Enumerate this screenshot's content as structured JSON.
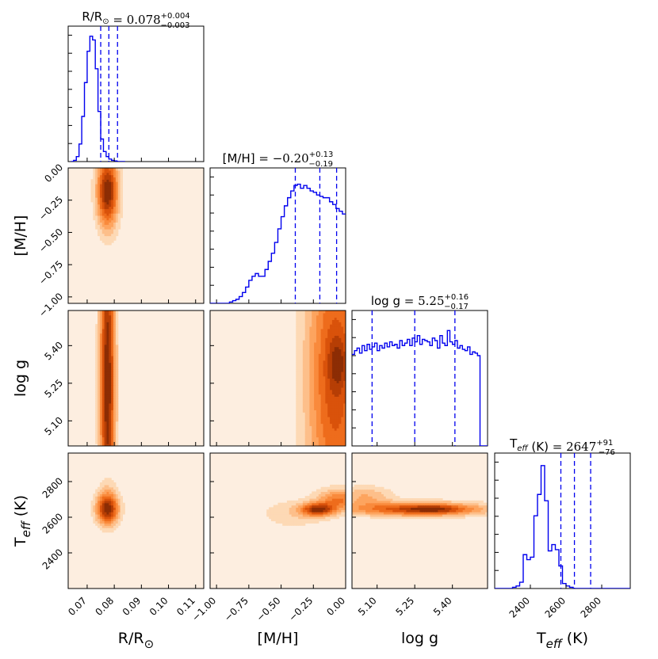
{
  "chart_data": {
    "type": "corner",
    "parameters": [
      {
        "key": "r",
        "label": "R/R",
        "label_sub": "⊙",
        "range": [
          0.063,
          0.113
        ],
        "ticks": [
          0.07,
          0.08,
          0.09,
          0.1,
          0.11
        ],
        "tick_labels": [
          "0.07",
          "0.08",
          "0.09",
          "0.10",
          "0.11"
        ],
        "title_name": "R/R",
        "title_sub": "⊙",
        "title_value": "= 0.078",
        "title_plus": "+0.004",
        "title_minus": "−0.003",
        "quantiles": [
          0.075,
          0.078,
          0.0812
        ],
        "hist": {
          "edges_start": 0.064,
          "bin": 0.001,
          "counts": [
            0,
            0.01,
            0.04,
            0.14,
            0.36,
            0.63,
            0.88,
            1.0,
            0.97,
            0.74,
            0.4,
            0.18,
            0.08,
            0.04,
            0.02,
            0.01,
            0.005,
            0,
            0,
            0
          ]
        }
      },
      {
        "key": "mh",
        "label": "[M/H]",
        "range": [
          -1.05,
          0.0
        ],
        "ticks": [
          -1.0,
          -0.75,
          -0.5,
          -0.25,
          0.0
        ],
        "tick_labels": [
          "−1.00",
          "−0.75",
          "−0.50",
          "−0.25",
          "0.00"
        ],
        "title_name": "[M/H]",
        "title_value": "= −0.20",
        "title_plus": "+0.13",
        "title_minus": "−0.19",
        "quantiles": [
          -0.39,
          -0.2,
          -0.07
        ],
        "hist": {
          "edges_start": -1.05,
          "bin": 0.025,
          "counts": [
            0,
            0,
            0,
            0,
            0,
            0,
            0.01,
            0.02,
            0.03,
            0.05,
            0.08,
            0.12,
            0.17,
            0.2,
            0.22,
            0.2,
            0.2,
            0.25,
            0.31,
            0.37,
            0.45,
            0.55,
            0.64,
            0.72,
            0.78,
            0.83,
            0.87,
            0.88,
            0.85,
            0.87,
            0.85,
            0.83,
            0.82,
            0.8,
            0.79,
            0.78,
            0.78,
            0.75,
            0.73,
            0.7,
            0.68,
            0.66
          ]
        }
      },
      {
        "key": "logg",
        "label": "log g",
        "range": [
          5.0,
          5.54
        ],
        "ticks": [
          5.1,
          5.25,
          5.4
        ],
        "tick_labels": [
          "5.10",
          "5.25",
          "5.40"
        ],
        "title_name": "log g",
        "title_value": "= 5.25",
        "title_plus": "+0.16",
        "title_minus": "−0.17",
        "quantiles": [
          5.08,
          5.25,
          5.41
        ],
        "hist": {
          "edges_start": 5.0,
          "bin": 0.01,
          "counts": [
            0.73,
            0.76,
            0.78,
            0.74,
            0.8,
            0.76,
            0.81,
            0.77,
            0.79,
            0.82,
            0.76,
            0.8,
            0.78,
            0.82,
            0.79,
            0.83,
            0.8,
            0.81,
            0.78,
            0.84,
            0.8,
            0.82,
            0.85,
            0.8,
            0.86,
            0.83,
            0.88,
            0.81,
            0.85,
            0.84,
            0.83,
            0.8,
            0.86,
            0.84,
            0.78,
            0.88,
            0.82,
            0.8,
            0.92,
            0.83,
            0.81,
            0.84,
            0.78,
            0.8,
            0.77,
            0.76,
            0.79,
            0.73,
            0.75,
            0.74,
            0.72,
            0.0,
            0.0,
            0.0
          ]
        }
      },
      {
        "key": "teff",
        "label": "T",
        "label_sub": "eff",
        "label_suffix": " (K)",
        "range": [
          2200,
          2960
        ],
        "ticks": [
          2400,
          2600,
          2800
        ],
        "tick_labels": [
          "2400",
          "2600",
          "2800"
        ],
        "title_name": "T",
        "title_sub": "eff",
        "title_suffix": " (K)",
        "title_value": "= 2647",
        "title_plus": "+91",
        "title_minus": "−76",
        "quantiles": [
          2571,
          2647,
          2738
        ],
        "hist": {
          "edges_start": 2200,
          "bin": 20,
          "counts": [
            0,
            0,
            0,
            0,
            0,
            0.01,
            0.02,
            0.05,
            0.27,
            0.23,
            0.25,
            0.58,
            0.75,
            0.98,
            0.7,
            0.3,
            0.35,
            0.31,
            0.18,
            0.04,
            0.02,
            0.01,
            0,
            0,
            0,
            0,
            0,
            0,
            0,
            0,
            0,
            0,
            0,
            0,
            0,
            0,
            0,
            0
          ]
        }
      }
    ],
    "contour_levels": 8,
    "colormap": [
      "#fdeee0",
      "#fdd9b5",
      "#fdbf8a",
      "#fda45f",
      "#f98a3c",
      "#ee6c1c",
      "#d9520b",
      "#b63e05",
      "#8c2d04"
    ],
    "hist_color": "#0000ee",
    "pairs": [
      {
        "row": 1,
        "col": 0,
        "blobs": [
          {
            "cx": 0.0775,
            "cy": -0.18,
            "sx": 0.0028,
            "sy": 0.2,
            "w": 1
          }
        ]
      },
      {
        "row": 2,
        "col": 0,
        "blobs": [
          {
            "cx": 0.0775,
            "cy": 5.25,
            "sx": 0.002,
            "sy": 0.5,
            "w": 1
          }
        ]
      },
      {
        "row": 2,
        "col": 1,
        "blobs": [
          {
            "cx": -0.08,
            "cy": 5.28,
            "sx": 0.16,
            "sy": 0.45,
            "w": 1
          },
          {
            "cx": -0.06,
            "cy": 5.33,
            "sx": 0.05,
            "sy": 0.07,
            "w": 0.35
          }
        ]
      },
      {
        "row": 3,
        "col": 0,
        "blobs": [
          {
            "cx": 0.0775,
            "cy": 2647,
            "sx": 0.003,
            "sy": 60,
            "w": 1
          },
          {
            "cx": 0.0775,
            "cy": 2700,
            "sx": 0.0025,
            "sy": 100,
            "w": 0.25
          }
        ]
      },
      {
        "row": 3,
        "col": 1,
        "blobs": [
          {
            "cx": -0.22,
            "cy": 2645,
            "sx": 0.09,
            "sy": 25,
            "w": 1
          },
          {
            "cx": -0.05,
            "cy": 2700,
            "sx": 0.12,
            "sy": 45,
            "w": 0.7
          },
          {
            "cx": -0.4,
            "cy": 2620,
            "sx": 0.2,
            "sy": 60,
            "w": 0.25
          }
        ]
      },
      {
        "row": 3,
        "col": 2,
        "blobs": [
          {
            "cx": 5.26,
            "cy": 2647,
            "sx": 0.2,
            "sy": 28,
            "w": 1
          },
          {
            "cx": 5.33,
            "cy": 2647,
            "sx": 0.08,
            "sy": 18,
            "w": 0.4
          },
          {
            "cx": 5.05,
            "cy": 2720,
            "sx": 0.08,
            "sy": 40,
            "w": 0.45
          }
        ]
      }
    ],
    "diag_ylims": [
      1.08,
      1.0,
      1.08,
      1.08
    ]
  }
}
